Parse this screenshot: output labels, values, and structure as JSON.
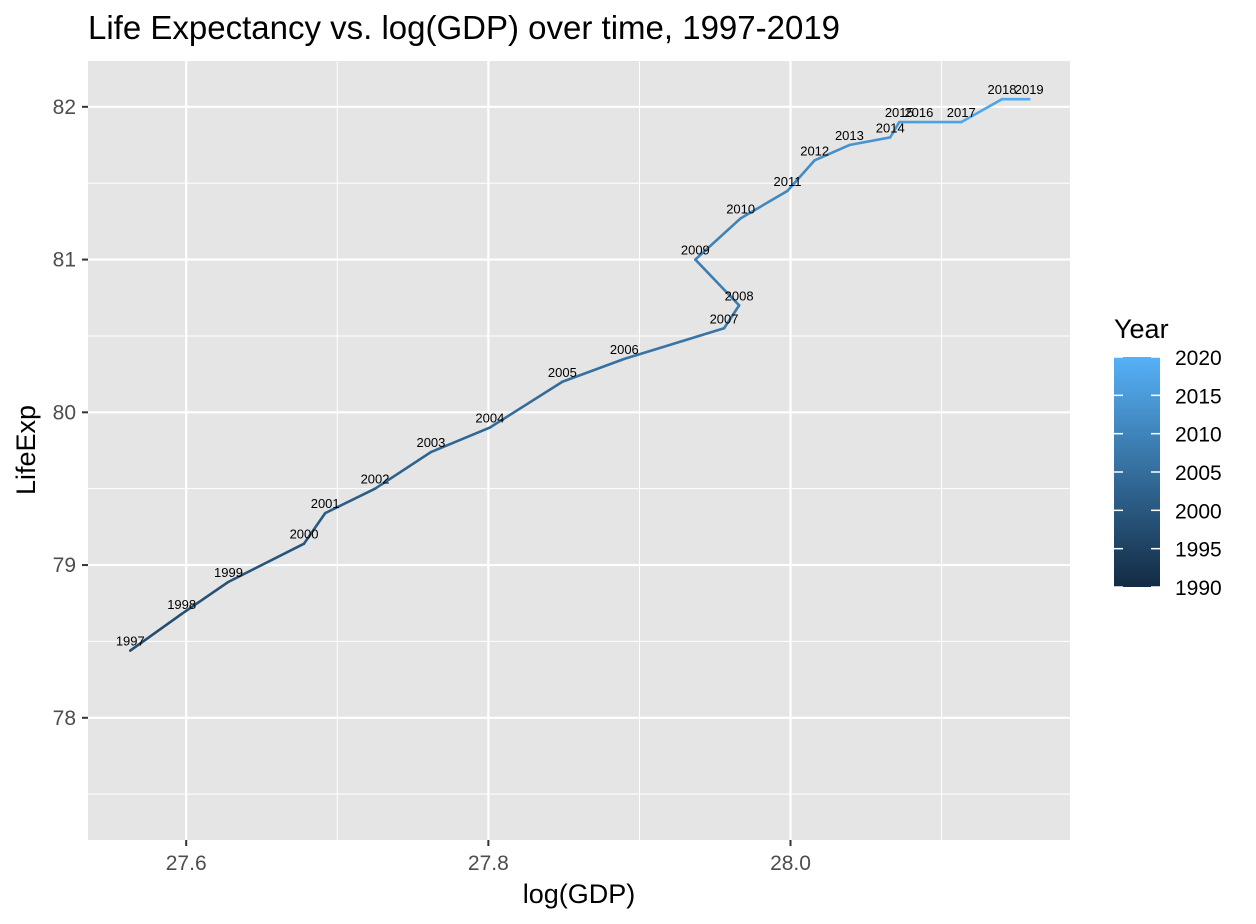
{
  "chart_data": {
    "type": "line",
    "title": "Life Expectancy vs. log(GDP) over time, 1997-2019",
    "xlabel": "log(GDP)",
    "ylabel": "LifeExp",
    "xlim": [
      27.535,
      28.185
    ],
    "ylim": [
      77.2,
      82.3
    ],
    "x_ticks": [
      27.6,
      27.8,
      28.0
    ],
    "x_tick_labels": [
      "27.6",
      "27.8",
      "28.0"
    ],
    "y_ticks": [
      78,
      79,
      80,
      81,
      82
    ],
    "y_tick_labels": [
      "78",
      "79",
      "80",
      "81",
      "82"
    ],
    "grid": true,
    "legend": {
      "title": "Year",
      "position": "right",
      "type": "colorbar",
      "range": [
        1990,
        2020
      ],
      "breaks": [
        1990,
        1995,
        2000,
        2005,
        2010,
        2015,
        2020
      ],
      "break_labels": [
        "1990",
        "1995",
        "2000",
        "2005",
        "2010",
        "2015",
        "2020"
      ],
      "low_color": "#132B43",
      "high_color": "#56B1F7"
    },
    "points": [
      {
        "year": 1997,
        "label": "1997",
        "x": 27.563,
        "y": 78.44
      },
      {
        "year": 1998,
        "label": "1998",
        "x": 27.597,
        "y": 78.68
      },
      {
        "year": 1999,
        "label": "1999",
        "x": 27.628,
        "y": 78.89
      },
      {
        "year": 2000,
        "label": "2000",
        "x": 27.678,
        "y": 79.14
      },
      {
        "year": 2001,
        "label": "2001",
        "x": 27.692,
        "y": 79.34
      },
      {
        "year": 2002,
        "label": "2002",
        "x": 27.725,
        "y": 79.5
      },
      {
        "year": 2003,
        "label": "2003",
        "x": 27.762,
        "y": 79.74
      },
      {
        "year": 2004,
        "label": "2004",
        "x": 27.801,
        "y": 79.9
      },
      {
        "year": 2005,
        "label": "2005",
        "x": 27.849,
        "y": 80.2
      },
      {
        "year": 2006,
        "label": "2006",
        "x": 27.89,
        "y": 80.35
      },
      {
        "year": 2007,
        "label": "2007",
        "x": 27.956,
        "y": 80.55
      },
      {
        "year": 2008,
        "label": "2008",
        "x": 27.966,
        "y": 80.7
      },
      {
        "year": 2009,
        "label": "2009",
        "x": 27.937,
        "y": 81.0
      },
      {
        "year": 2010,
        "label": "2010",
        "x": 27.967,
        "y": 81.27
      },
      {
        "year": 2011,
        "label": "2011",
        "x": 27.998,
        "y": 81.45
      },
      {
        "year": 2012,
        "label": "2012",
        "x": 28.016,
        "y": 81.65
      },
      {
        "year": 2013,
        "label": "2013",
        "x": 28.039,
        "y": 81.75
      },
      {
        "year": 2014,
        "label": "2014",
        "x": 28.066,
        "y": 81.8
      },
      {
        "year": 2015,
        "label": "2015",
        "x": 28.072,
        "y": 81.9
      },
      {
        "year": 2016,
        "label": "2016",
        "x": 28.085,
        "y": 81.9
      },
      {
        "year": 2017,
        "label": "2017",
        "x": 28.113,
        "y": 81.9
      },
      {
        "year": 2018,
        "label": "2018",
        "x": 28.14,
        "y": 82.05
      },
      {
        "year": 2019,
        "label": "2019",
        "x": 28.158,
        "y": 82.05
      }
    ],
    "colors": {
      "panel_bg": "#e5e5e5",
      "grid": "#ffffff",
      "tick": "#333333"
    }
  }
}
